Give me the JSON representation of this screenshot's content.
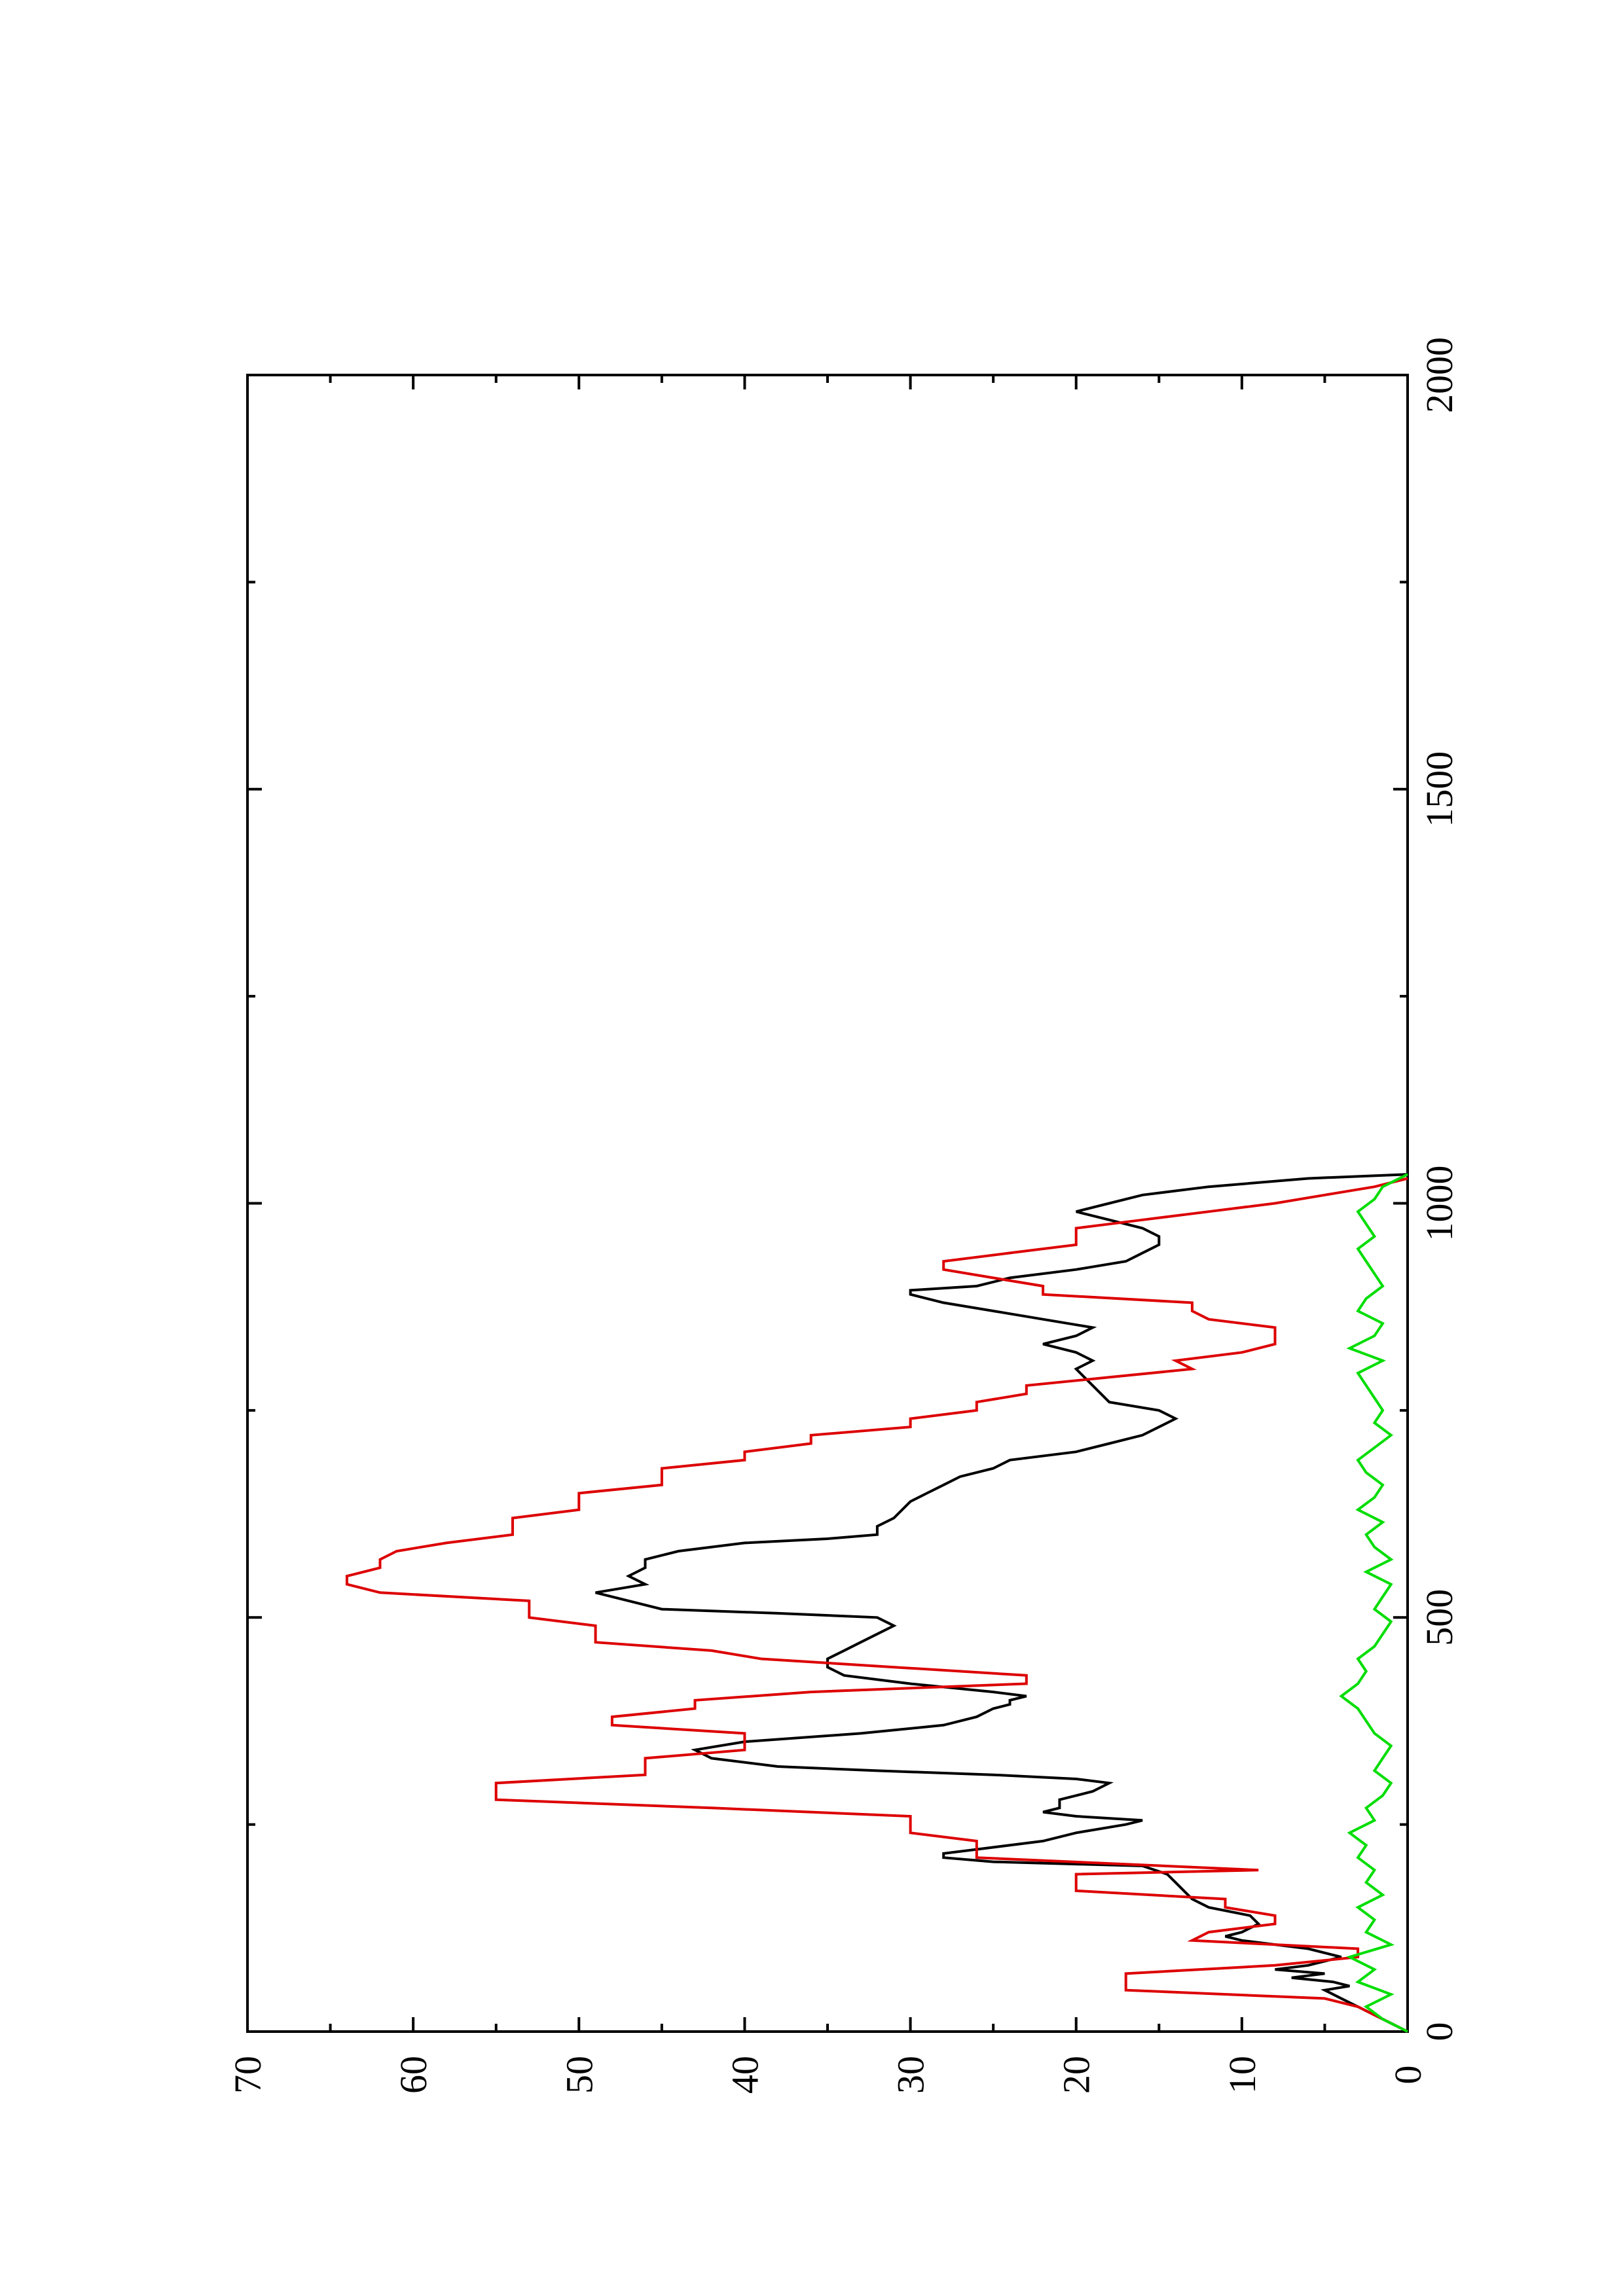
{
  "chart_data": {
    "type": "line",
    "orientation": "page rotated 90 degrees counter-clockwise",
    "title": "",
    "xlabel": "",
    "ylabel": "",
    "xlim": [
      0,
      2000
    ],
    "ylim": [
      0,
      70
    ],
    "x_ticks": [
      "0",
      "500",
      "1000",
      "1500",
      "2000"
    ],
    "y_ticks": [
      "0",
      "10",
      "20",
      "30",
      "40",
      "50",
      "60",
      "70"
    ],
    "grid": false,
    "legend": "none",
    "series": [
      {
        "color": "#000000",
        "points": [
          [
            0,
            0
          ],
          [
            10,
            1
          ],
          [
            20,
            2
          ],
          [
            30,
            3
          ],
          [
            40,
            4
          ],
          [
            50,
            5
          ],
          [
            55,
            3.5
          ],
          [
            60,
            4.5
          ],
          [
            65,
            7
          ],
          [
            70,
            5
          ],
          [
            75,
            8
          ],
          [
            80,
            6
          ],
          [
            90,
            4
          ],
          [
            100,
            6
          ],
          [
            110,
            10
          ],
          [
            115,
            11
          ],
          [
            120,
            10
          ],
          [
            130,
            9
          ],
          [
            140,
            9.5
          ],
          [
            150,
            12
          ],
          [
            160,
            13
          ],
          [
            170,
            13.5
          ],
          [
            180,
            14
          ],
          [
            190,
            14.5
          ],
          [
            200,
            16
          ],
          [
            205,
            25
          ],
          [
            210,
            28
          ],
          [
            215,
            28
          ],
          [
            220,
            26
          ],
          [
            230,
            22
          ],
          [
            240,
            20
          ],
          [
            250,
            17
          ],
          [
            255,
            16
          ],
          [
            260,
            20
          ],
          [
            265,
            22
          ],
          [
            270,
            21
          ],
          [
            280,
            21
          ],
          [
            290,
            19
          ],
          [
            300,
            18
          ],
          [
            305,
            20
          ],
          [
            310,
            25
          ],
          [
            315,
            32
          ],
          [
            320,
            38
          ],
          [
            330,
            42
          ],
          [
            340,
            43
          ],
          [
            350,
            40
          ],
          [
            360,
            33
          ],
          [
            370,
            28
          ],
          [
            380,
            26
          ],
          [
            390,
            25
          ],
          [
            395,
            24
          ],
          [
            400,
            24
          ],
          [
            405,
            23
          ],
          [
            410,
            25
          ],
          [
            420,
            30
          ],
          [
            430,
            34
          ],
          [
            440,
            35
          ],
          [
            450,
            35
          ],
          [
            460,
            34
          ],
          [
            470,
            33
          ],
          [
            480,
            32
          ],
          [
            490,
            31
          ],
          [
            500,
            32
          ],
          [
            505,
            38
          ],
          [
            510,
            45
          ],
          [
            520,
            47
          ],
          [
            530,
            49
          ],
          [
            540,
            46
          ],
          [
            550,
            47
          ],
          [
            560,
            46
          ],
          [
            570,
            46
          ],
          [
            580,
            44
          ],
          [
            590,
            40
          ],
          [
            595,
            35
          ],
          [
            600,
            32
          ],
          [
            610,
            32
          ],
          [
            620,
            31
          ],
          [
            640,
            30
          ],
          [
            650,
            29
          ],
          [
            660,
            28
          ],
          [
            670,
            27
          ],
          [
            680,
            25
          ],
          [
            690,
            24
          ],
          [
            700,
            20
          ],
          [
            710,
            18
          ],
          [
            720,
            16
          ],
          [
            730,
            15
          ],
          [
            740,
            14
          ],
          [
            750,
            15
          ],
          [
            760,
            18
          ],
          [
            780,
            19
          ],
          [
            800,
            20
          ],
          [
            810,
            19
          ],
          [
            820,
            20
          ],
          [
            830,
            22
          ],
          [
            840,
            20
          ],
          [
            850,
            19
          ],
          [
            860,
            22
          ],
          [
            870,
            25
          ],
          [
            880,
            28
          ],
          [
            890,
            30
          ],
          [
            895,
            30
          ],
          [
            900,
            26
          ],
          [
            910,
            24
          ],
          [
            920,
            20
          ],
          [
            930,
            17
          ],
          [
            940,
            16
          ],
          [
            950,
            15
          ],
          [
            960,
            15
          ],
          [
            970,
            16
          ],
          [
            980,
            18
          ],
          [
            990,
            20
          ],
          [
            1000,
            18
          ],
          [
            1010,
            16
          ],
          [
            1020,
            12
          ],
          [
            1030,
            6
          ],
          [
            1035,
            0
          ]
        ]
      },
      {
        "color": "#dd0000",
        "points": [
          [
            0,
            0
          ],
          [
            10,
            1
          ],
          [
            20,
            2
          ],
          [
            30,
            3
          ],
          [
            40,
            5
          ],
          [
            50,
            17
          ],
          [
            70,
            17
          ],
          [
            80,
            8
          ],
          [
            90,
            3
          ],
          [
            100,
            3
          ],
          [
            110,
            13
          ],
          [
            120,
            12
          ],
          [
            130,
            8
          ],
          [
            140,
            8
          ],
          [
            150,
            11
          ],
          [
            160,
            11
          ],
          [
            170,
            20
          ],
          [
            190,
            20
          ],
          [
            195,
            9
          ],
          [
            210,
            26
          ],
          [
            230,
            26
          ],
          [
            240,
            30
          ],
          [
            260,
            30
          ],
          [
            270,
            42
          ],
          [
            280,
            55
          ],
          [
            300,
            55
          ],
          [
            310,
            46
          ],
          [
            330,
            46
          ],
          [
            340,
            40
          ],
          [
            360,
            40
          ],
          [
            370,
            48
          ],
          [
            380,
            48
          ],
          [
            390,
            43
          ],
          [
            400,
            43
          ],
          [
            410,
            36
          ],
          [
            420,
            23
          ],
          [
            430,
            23
          ],
          [
            440,
            31
          ],
          [
            450,
            39
          ],
          [
            460,
            42
          ],
          [
            470,
            49
          ],
          [
            490,
            49
          ],
          [
            500,
            53
          ],
          [
            520,
            53
          ],
          [
            530,
            62
          ],
          [
            540,
            64
          ],
          [
            550,
            64
          ],
          [
            560,
            62
          ],
          [
            570,
            62
          ],
          [
            580,
            61
          ],
          [
            590,
            58
          ],
          [
            600,
            54
          ],
          [
            620,
            54
          ],
          [
            630,
            50
          ],
          [
            650,
            50
          ],
          [
            660,
            45
          ],
          [
            680,
            45
          ],
          [
            690,
            40
          ],
          [
            700,
            40
          ],
          [
            710,
            36
          ],
          [
            720,
            36
          ],
          [
            730,
            30
          ],
          [
            740,
            30
          ],
          [
            750,
            26
          ],
          [
            760,
            26
          ],
          [
            770,
            23
          ],
          [
            780,
            23
          ],
          [
            790,
            18
          ],
          [
            800,
            13
          ],
          [
            810,
            14
          ],
          [
            820,
            10
          ],
          [
            830,
            8
          ],
          [
            850,
            8
          ],
          [
            860,
            12
          ],
          [
            870,
            13
          ],
          [
            880,
            13
          ],
          [
            890,
            22
          ],
          [
            900,
            22
          ],
          [
            910,
            25
          ],
          [
            920,
            28
          ],
          [
            930,
            28
          ],
          [
            940,
            24
          ],
          [
            950,
            20
          ],
          [
            970,
            20
          ],
          [
            980,
            16
          ],
          [
            990,
            12
          ],
          [
            1000,
            8
          ],
          [
            1010,
            5
          ],
          [
            1020,
            2
          ],
          [
            1030,
            0
          ]
        ]
      },
      {
        "color": "#00dd00",
        "points": [
          [
            0,
            0
          ],
          [
            15,
            1.5
          ],
          [
            30,
            2.5
          ],
          [
            45,
            1
          ],
          [
            60,
            3
          ],
          [
            75,
            2
          ],
          [
            90,
            3.5
          ],
          [
            105,
            1
          ],
          [
            120,
            2.5
          ],
          [
            135,
            2
          ],
          [
            150,
            3
          ],
          [
            165,
            1.5
          ],
          [
            180,
            2.5
          ],
          [
            195,
            2
          ],
          [
            210,
            3
          ],
          [
            225,
            2.5
          ],
          [
            240,
            3.5
          ],
          [
            255,
            2
          ],
          [
            270,
            2.5
          ],
          [
            285,
            1.5
          ],
          [
            300,
            1
          ],
          [
            315,
            2
          ],
          [
            330,
            1.5
          ],
          [
            345,
            1
          ],
          [
            360,
            2
          ],
          [
            375,
            2.5
          ],
          [
            390,
            3
          ],
          [
            405,
            4
          ],
          [
            420,
            3
          ],
          [
            435,
            2.5
          ],
          [
            450,
            3
          ],
          [
            465,
            2
          ],
          [
            480,
            1.5
          ],
          [
            495,
            1
          ],
          [
            510,
            2
          ],
          [
            525,
            1.5
          ],
          [
            540,
            1
          ],
          [
            555,
            2.5
          ],
          [
            570,
            1
          ],
          [
            585,
            2
          ],
          [
            600,
            2.5
          ],
          [
            615,
            1.5
          ],
          [
            630,
            3
          ],
          [
            645,
            2
          ],
          [
            660,
            1.5
          ],
          [
            675,
            2.5
          ],
          [
            690,
            3
          ],
          [
            705,
            2
          ],
          [
            720,
            1
          ],
          [
            735,
            2
          ],
          [
            750,
            1.5
          ],
          [
            765,
            2
          ],
          [
            780,
            2.5
          ],
          [
            795,
            3
          ],
          [
            810,
            1.5
          ],
          [
            825,
            3.5
          ],
          [
            840,
            2
          ],
          [
            855,
            1.5
          ],
          [
            870,
            3
          ],
          [
            885,
            2.5
          ],
          [
            900,
            1.5
          ],
          [
            915,
            2
          ],
          [
            930,
            2.5
          ],
          [
            945,
            3
          ],
          [
            960,
            2
          ],
          [
            975,
            2.5
          ],
          [
            990,
            3
          ],
          [
            1005,
            2
          ],
          [
            1020,
            1.5
          ],
          [
            1035,
            0
          ]
        ]
      }
    ]
  }
}
